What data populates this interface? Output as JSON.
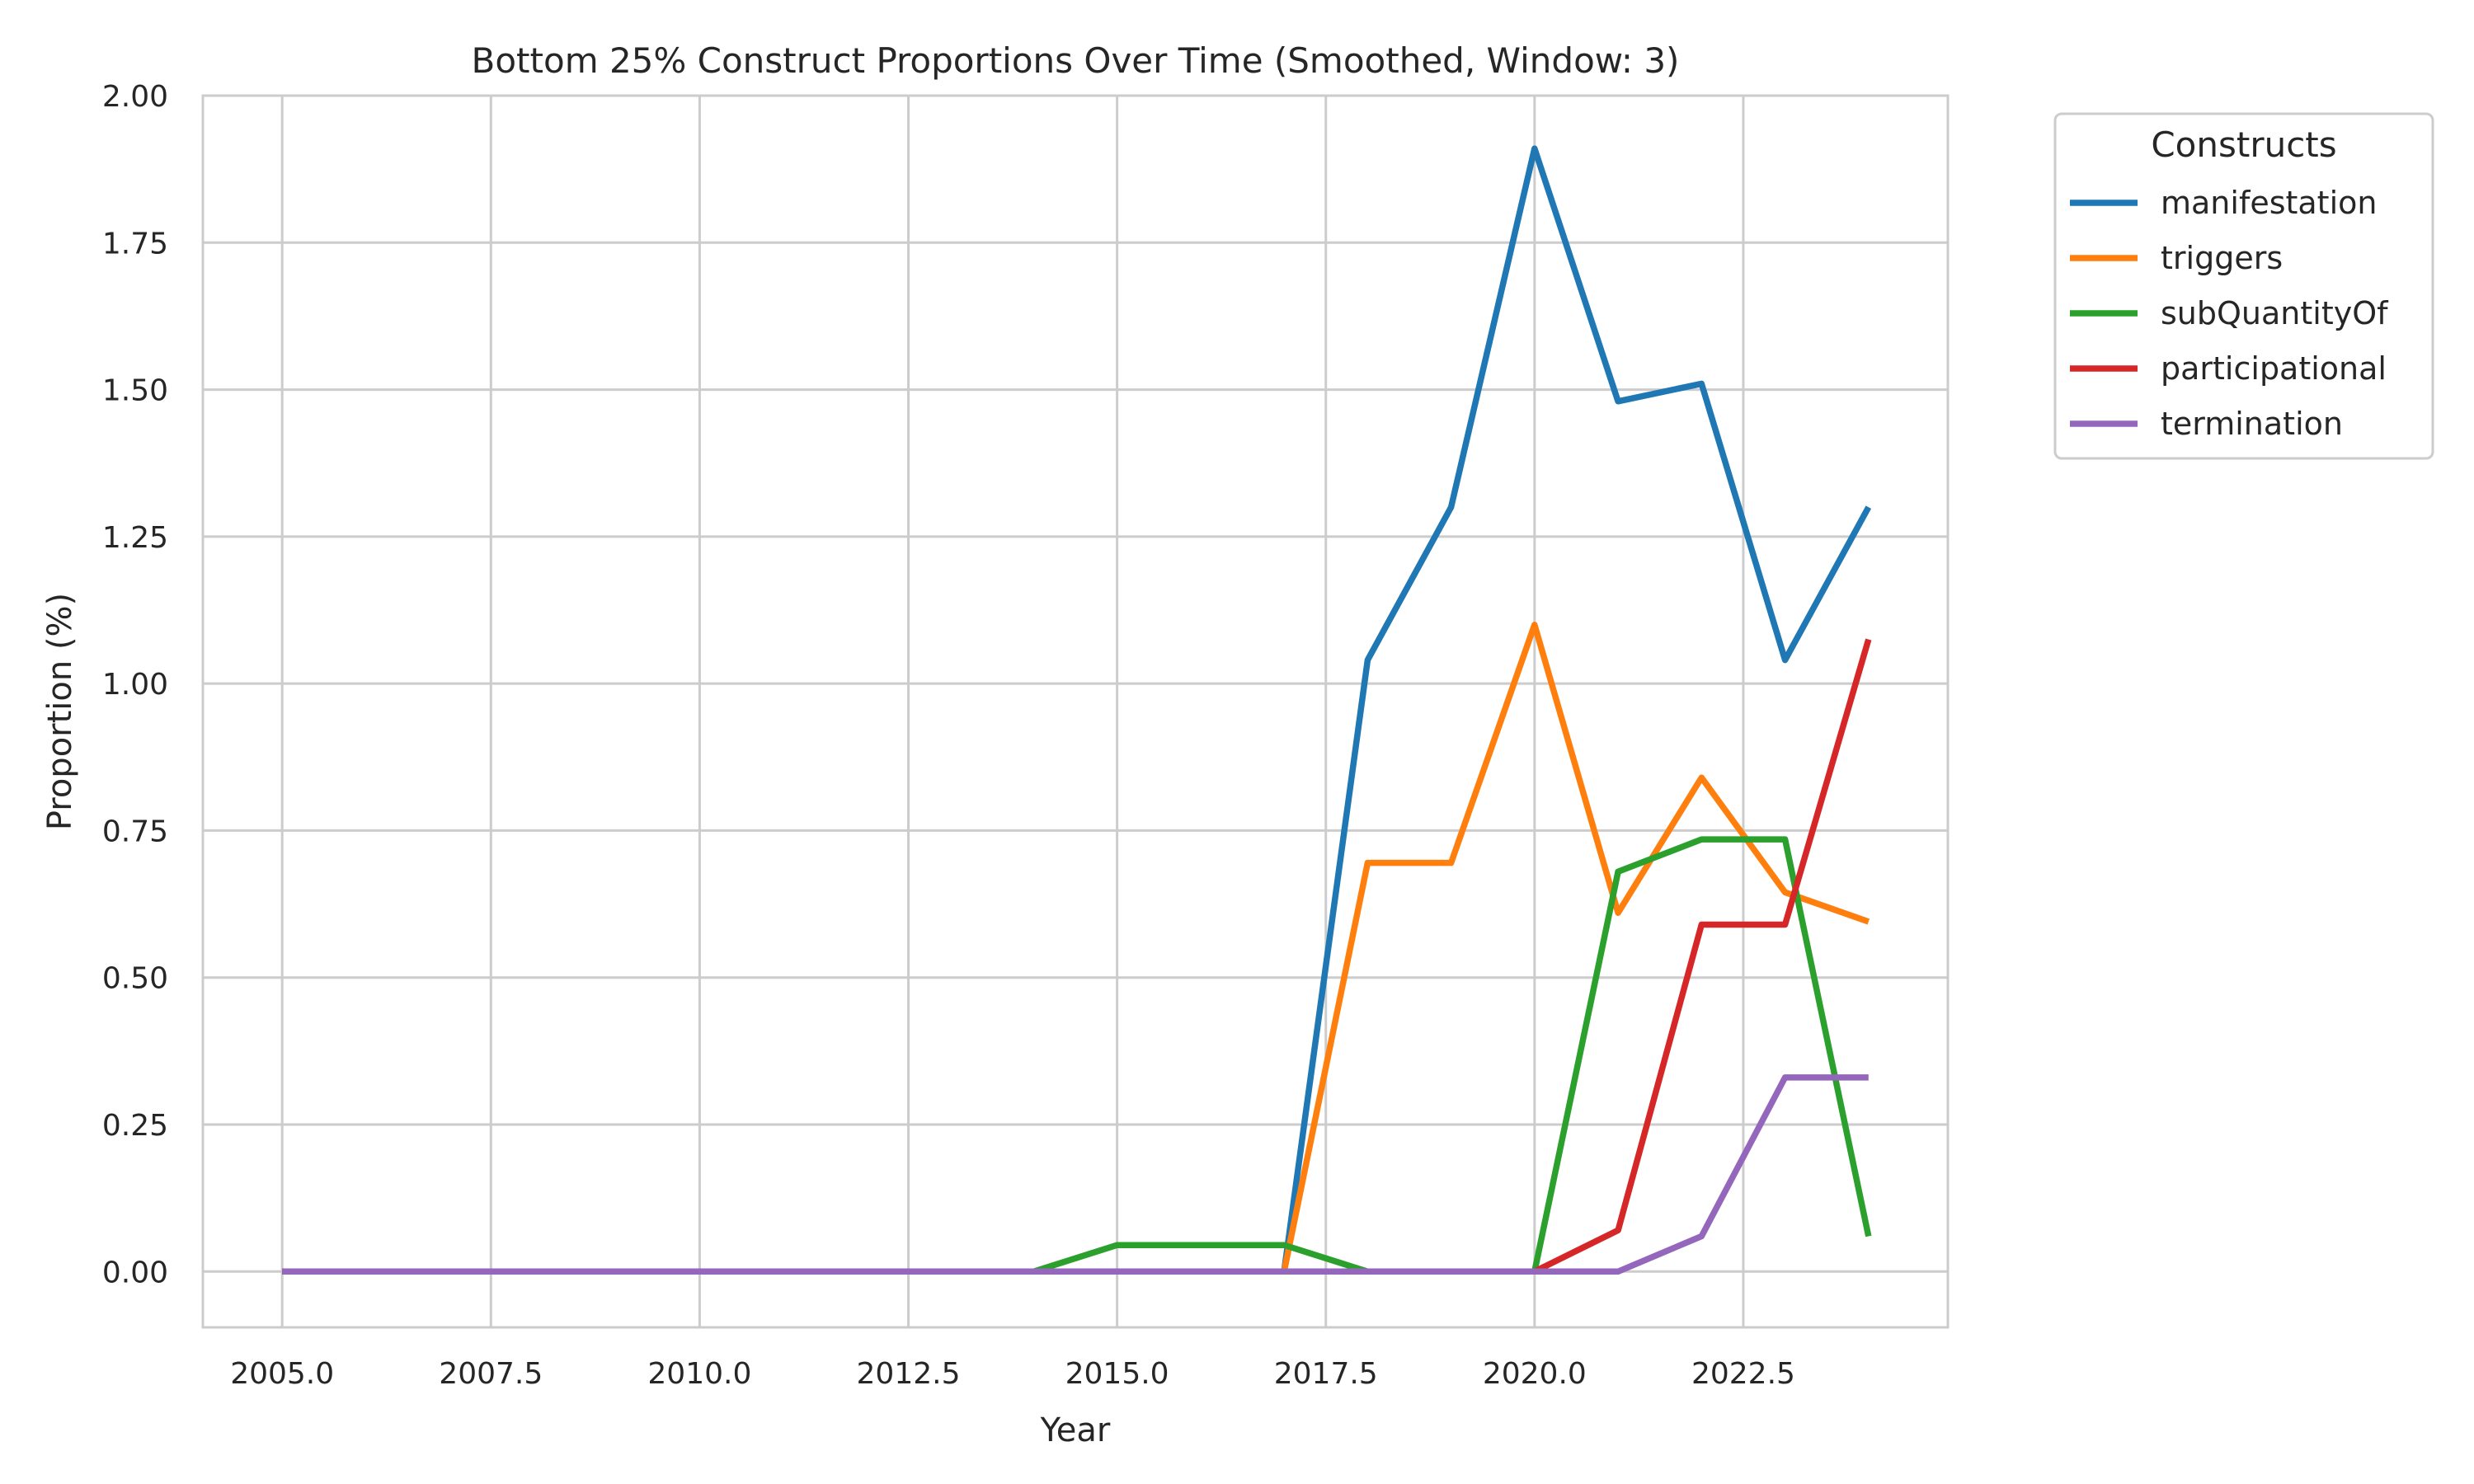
{
  "chart_data": {
    "type": "line",
    "title": "Bottom 25% Construct Proportions Over Time (Smoothed, Window: 3)",
    "xlabel": "Year",
    "ylabel": "Proportion (%)",
    "xlim": [
      2004.05,
      2024.95
    ],
    "ylim": [
      -0.095,
      2.0
    ],
    "xticks": [
      2005.0,
      2007.5,
      2010.0,
      2012.5,
      2015.0,
      2017.5,
      2020.0,
      2022.5
    ],
    "xtick_labels": [
      "2005.0",
      "2007.5",
      "2010.0",
      "2012.5",
      "2015.0",
      "2017.5",
      "2020.0",
      "2022.5"
    ],
    "yticks": [
      0.0,
      0.25,
      0.5,
      0.75,
      1.0,
      1.25,
      1.5,
      1.75,
      2.0
    ],
    "ytick_labels": [
      "0.00",
      "0.25",
      "0.50",
      "0.75",
      "1.00",
      "1.25",
      "1.50",
      "1.75",
      "2.00"
    ],
    "grid": true,
    "legend": {
      "title": "Constructs",
      "placement": "outside-upper-right"
    },
    "x": [
      2005,
      2006,
      2007,
      2008,
      2009,
      2010,
      2011,
      2012,
      2013,
      2014,
      2015,
      2016,
      2017,
      2018,
      2019,
      2020,
      2021,
      2022,
      2023,
      2024
    ],
    "series": [
      {
        "name": "manifestation",
        "color": "#1f77b4",
        "values": [
          0,
          0,
          0,
          0,
          0,
          0,
          0,
          0,
          0,
          0,
          0,
          0,
          0,
          1.04,
          1.3,
          1.91,
          1.48,
          1.51,
          1.04,
          1.3
        ]
      },
      {
        "name": "triggers",
        "color": "#ff7f0e",
        "values": [
          0,
          0,
          0,
          0,
          0,
          0,
          0,
          0,
          0,
          0,
          0,
          0,
          0,
          0.695,
          0.695,
          1.1,
          0.61,
          0.84,
          0.645,
          0.595
        ]
      },
      {
        "name": "subQuantityOf",
        "color": "#2ca02c",
        "values": [
          0,
          0,
          0,
          0,
          0,
          0,
          0,
          0,
          0,
          0,
          0.045,
          0.045,
          0.045,
          0,
          0,
          0,
          0.68,
          0.735,
          0.735,
          0.06
        ]
      },
      {
        "name": "participational",
        "color": "#d62728",
        "values": [
          0,
          0,
          0,
          0,
          0,
          0,
          0,
          0,
          0,
          0,
          0,
          0,
          0,
          0,
          0,
          0,
          0.07,
          0.59,
          0.59,
          1.075
        ]
      },
      {
        "name": "termination",
        "color": "#9467bd",
        "values": [
          0,
          0,
          0,
          0,
          0,
          0,
          0,
          0,
          0,
          0,
          0,
          0,
          0,
          0,
          0,
          0,
          0,
          0.06,
          0.33,
          0.33
        ]
      }
    ]
  }
}
